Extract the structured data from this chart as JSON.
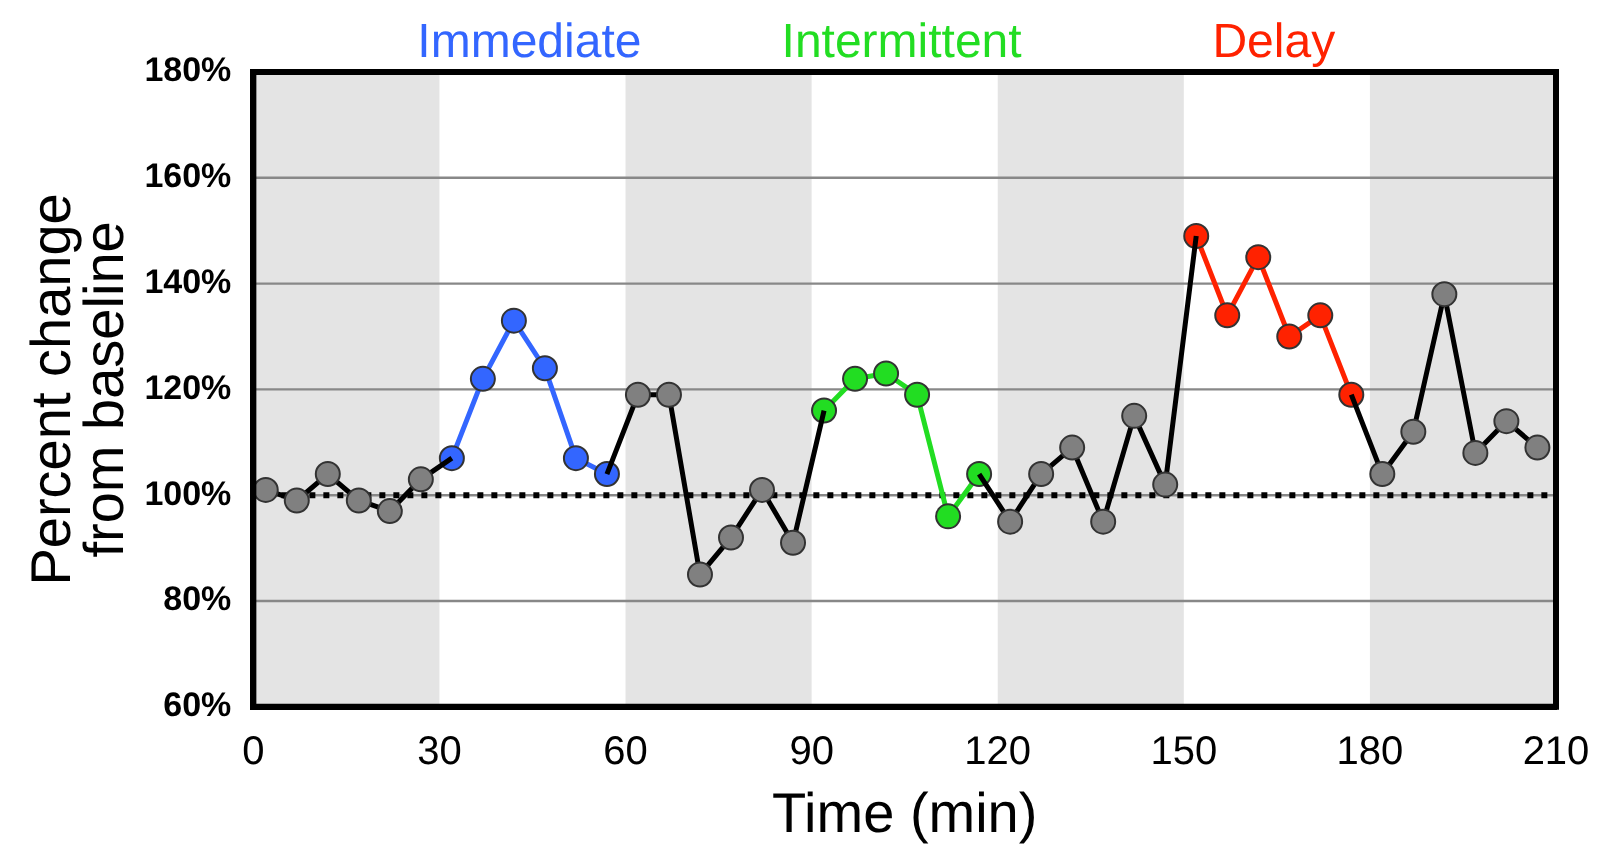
{
  "chart_data": {
    "type": "line",
    "xlabel": "Time (min)",
    "ylabel": "Percent change\nfrom baseline",
    "x": [
      2,
      7,
      12,
      17,
      22,
      27,
      32,
      37,
      42,
      47,
      52,
      57,
      62,
      67,
      72,
      77,
      82,
      87,
      92,
      97,
      102,
      107,
      112,
      117,
      122,
      127,
      132,
      137,
      142,
      147,
      152,
      157,
      162,
      167,
      172,
      177,
      182,
      187,
      192,
      197,
      202,
      207
    ],
    "series": [
      {
        "color": "#808080",
        "values": [
          101,
          99,
          104,
          99,
          97,
          103,
          107,
          null,
          null,
          null,
          null,
          104,
          119,
          119,
          85,
          92,
          101,
          91,
          116,
          null,
          null,
          null,
          null,
          104,
          95,
          104,
          109,
          95,
          115,
          102,
          149,
          null,
          null,
          null,
          null,
          119,
          104,
          112,
          138,
          108,
          114,
          109
        ]
      },
      {
        "name": "Immediate",
        "color": "#3366ff",
        "values": [
          null,
          null,
          null,
          null,
          null,
          null,
          107,
          122,
          133,
          124,
          107,
          104,
          null,
          null,
          null,
          null,
          null,
          null,
          null,
          null,
          null,
          null,
          null,
          null,
          null,
          null,
          null,
          null,
          null,
          null,
          null,
          null,
          null,
          null,
          null,
          null,
          null,
          null,
          null,
          null,
          null,
          null
        ]
      },
      {
        "name": "Intermittent",
        "color": "#22dd22",
        "values": [
          null,
          null,
          null,
          null,
          null,
          null,
          null,
          null,
          null,
          null,
          null,
          null,
          null,
          null,
          null,
          null,
          null,
          null,
          116,
          122,
          123,
          119,
          96,
          104,
          null,
          null,
          null,
          null,
          null,
          null,
          null,
          null,
          null,
          null,
          null,
          null,
          null,
          null,
          null,
          null,
          null,
          null
        ]
      },
      {
        "name": "Delay",
        "color": "#ff2200",
        "values": [
          null,
          null,
          null,
          null,
          null,
          null,
          null,
          null,
          null,
          null,
          null,
          null,
          null,
          null,
          null,
          null,
          null,
          null,
          null,
          null,
          null,
          null,
          null,
          null,
          null,
          null,
          null,
          null,
          null,
          null,
          149,
          134,
          145,
          130,
          134,
          119,
          null,
          null,
          null,
          null,
          null,
          null
        ]
      }
    ],
    "xlim": [
      0,
      210
    ],
    "xticks": [
      0,
      30,
      60,
      90,
      120,
      150,
      180,
      210
    ],
    "ylim": [
      60,
      180
    ],
    "yticks": [
      {
        "value": 60,
        "label": "60%"
      },
      {
        "value": 80,
        "label": "80%"
      },
      {
        "value": 100,
        "label": "100%"
      },
      {
        "value": 120,
        "label": "120%"
      },
      {
        "value": 140,
        "label": "140%"
      },
      {
        "value": 160,
        "label": "160%"
      },
      {
        "value": 180,
        "label": "180%"
      }
    ],
    "grid": "y",
    "legend": "top",
    "marker": "circle",
    "line_style": "solid",
    "ref_lines": [
      {
        "axis": "y",
        "value": 100,
        "line_style": "dotted",
        "color": "#000000"
      }
    ],
    "bands": [
      {
        "axis": "x",
        "from": 0,
        "to": 30,
        "color": "#e4e4e4"
      },
      {
        "axis": "x",
        "from": 60,
        "to": 90,
        "color": "#e4e4e4"
      },
      {
        "axis": "x",
        "from": 120,
        "to": 150,
        "color": "#e4e4e4"
      },
      {
        "axis": "x",
        "from": 180,
        "to": 210,
        "color": "#e4e4e4"
      }
    ]
  }
}
